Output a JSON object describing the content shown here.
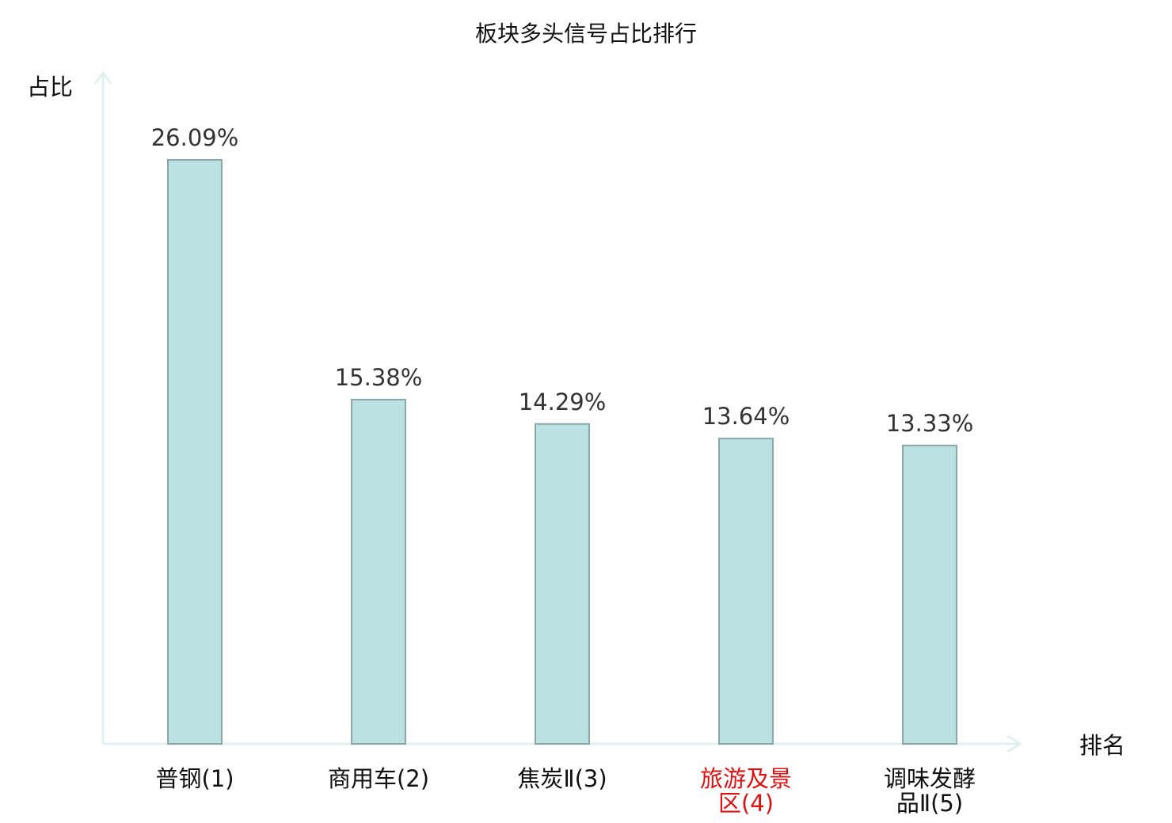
{
  "chart_data": {
    "type": "bar",
    "title": "板块多头信号占比排行",
    "ylabel": "占比",
    "xlabel": "排名",
    "ylim": [
      0,
      30
    ],
    "categories": [
      {
        "lines": [
          "普钢(1)"
        ],
        "highlight": false
      },
      {
        "lines": [
          "商用车(2)"
        ],
        "highlight": false
      },
      {
        "lines": [
          "焦炭Ⅱ(3)"
        ],
        "highlight": false
      },
      {
        "lines": [
          "旅游及景",
          "区(4)"
        ],
        "highlight": true
      },
      {
        "lines": [
          "调味发酵",
          "品Ⅱ(5)"
        ],
        "highlight": false
      }
    ],
    "values": [
      26.09,
      15.38,
      14.29,
      13.64,
      13.33
    ],
    "value_labels": [
      "26.09%",
      "15.38%",
      "14.29%",
      "13.64%",
      "13.33%"
    ],
    "grid": false,
    "colors": {
      "bar_fill": "#bce1e2",
      "bar_stroke": "#8aa7a7",
      "axis": "#dff2ef",
      "highlight_text": "#e01010",
      "normal_text": "#111111"
    }
  }
}
